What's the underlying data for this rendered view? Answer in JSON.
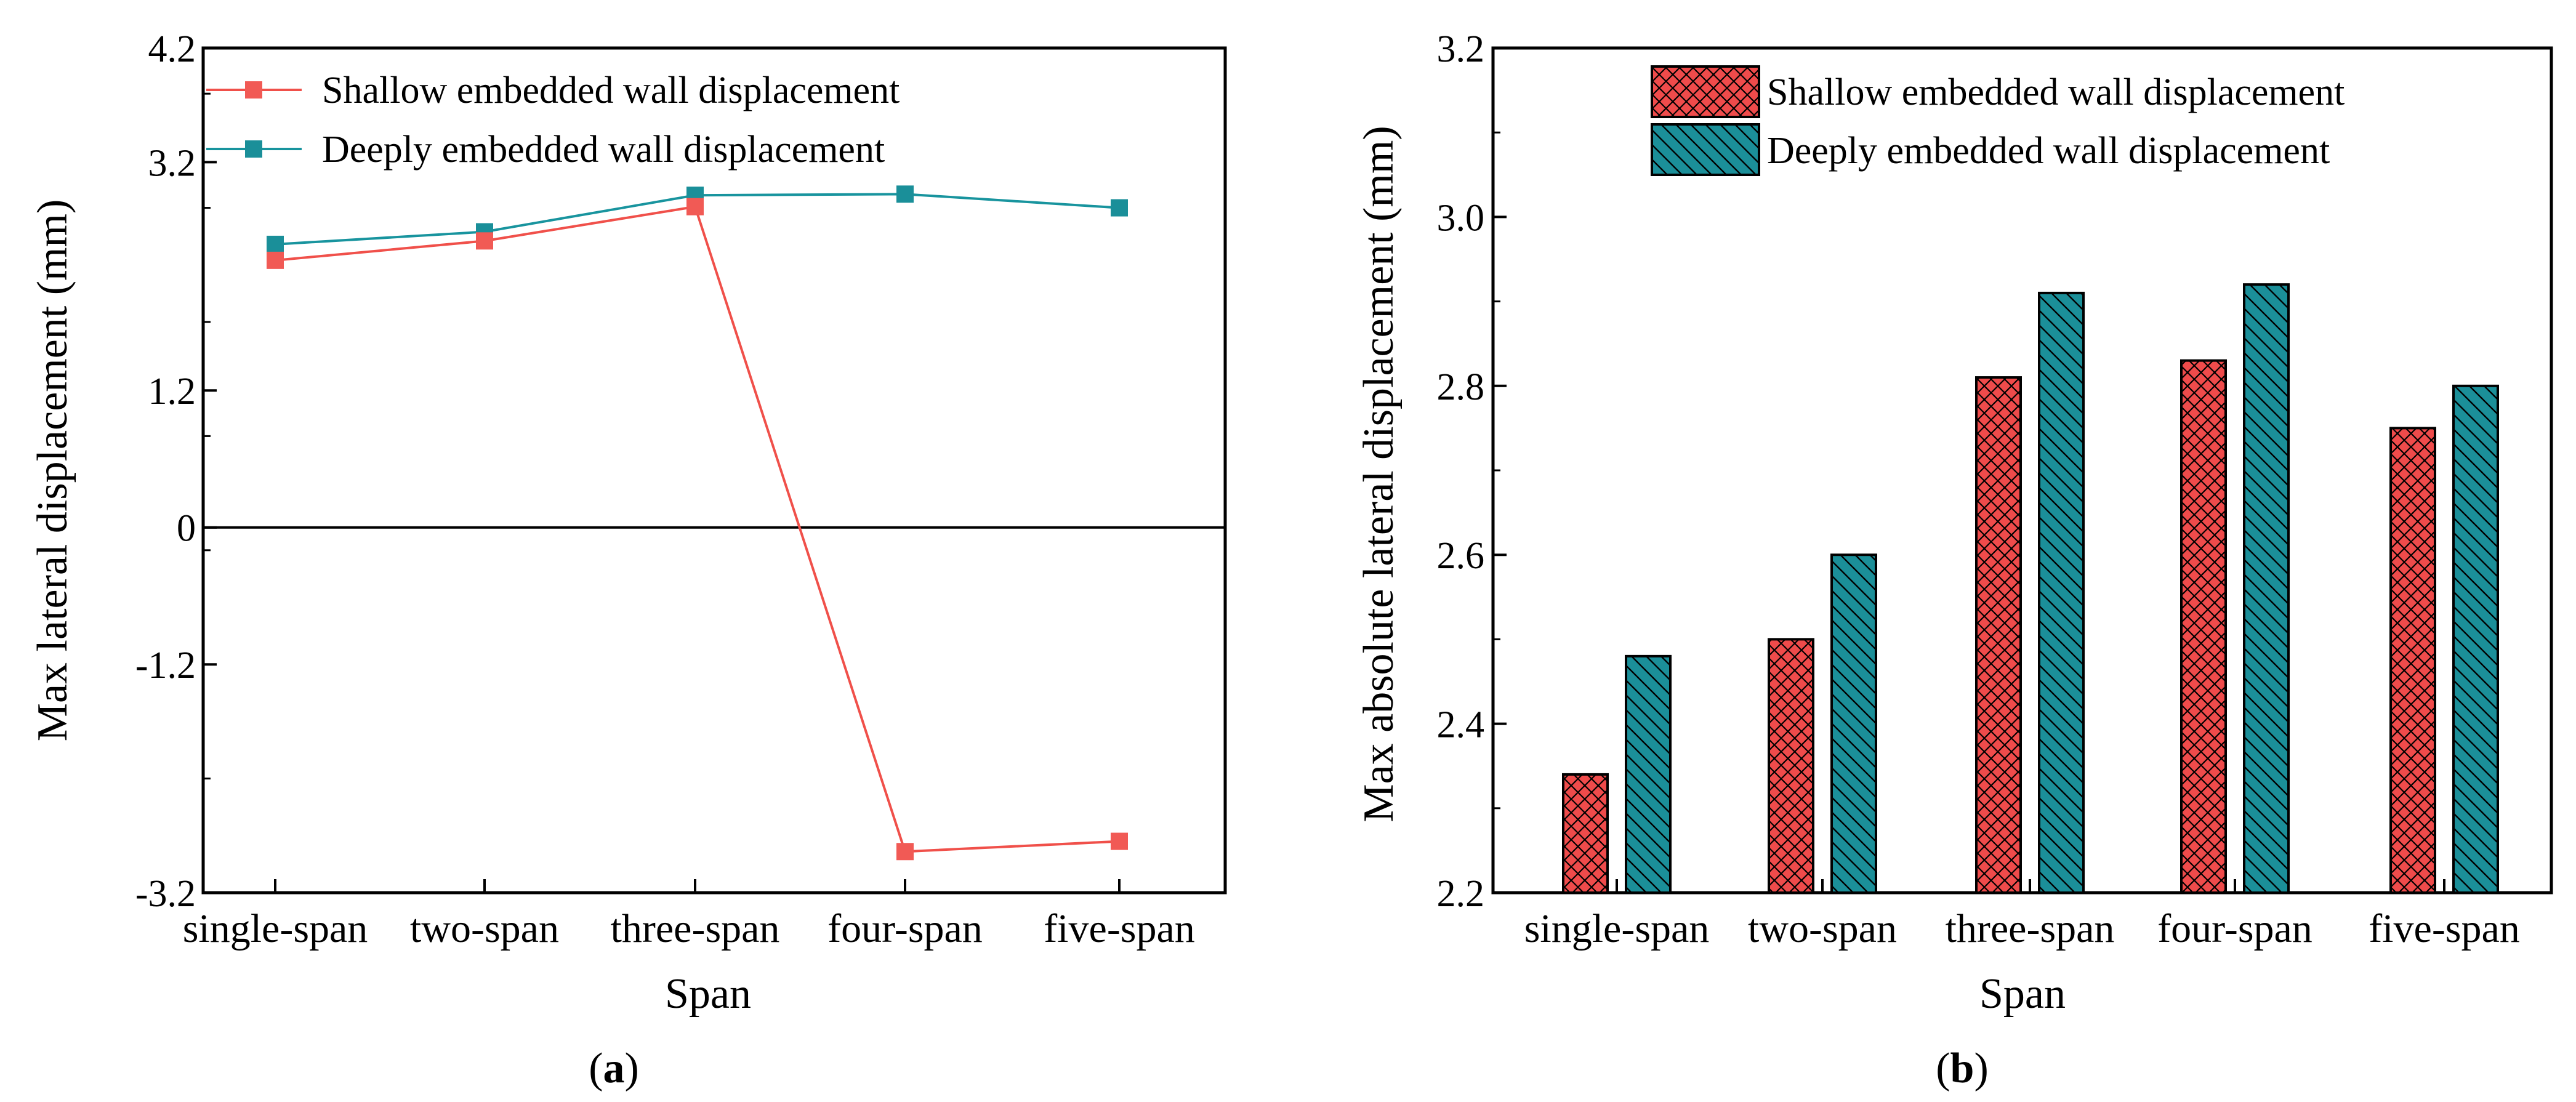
{
  "chart_data": [
    {
      "type": "line",
      "panel_label": "(a)",
      "panel_letter": "a",
      "categories": [
        "single-span",
        "two-span",
        "three-span",
        "four-span",
        "five-span"
      ],
      "series": [
        {
          "name": "Shallow embedded wall displacement",
          "values": [
            2.34,
            2.51,
            2.81,
            -2.84,
            -2.75
          ],
          "color": "#f0504a",
          "marker_color": "#f15a55"
        },
        {
          "name": "Deeply embedded wall displacement",
          "values": [
            2.48,
            2.59,
            2.91,
            2.92,
            2.8
          ],
          "color": "#18949e",
          "marker_color": "#1a8f99"
        }
      ],
      "xlabel": "Span",
      "ylabel": "Max lateral displacement (mm)",
      "ylim": [
        -3.2,
        4.2
      ],
      "yticks": [
        -3.2,
        -1.2,
        0,
        1.2,
        3.2,
        4.2
      ],
      "ytick_labels": [
        "-3.2",
        "-1.2",
        "0",
        "1.2",
        "3.2",
        "4.2"
      ],
      "zero_line": true,
      "legend_position": "top-left",
      "grid": false
    },
    {
      "type": "bar",
      "panel_label": "(b)",
      "panel_letter": "b",
      "categories": [
        "single-span",
        "two-span",
        "three-span",
        "four-span",
        "five-span"
      ],
      "series": [
        {
          "name": "Shallow embedded wall displacement",
          "values": [
            2.34,
            2.5,
            2.81,
            2.83,
            2.75
          ],
          "color": "#ef4b4b",
          "hatch": "crosshatch"
        },
        {
          "name": "Deeply embedded wall displacement",
          "values": [
            2.48,
            2.6,
            2.91,
            2.92,
            2.8
          ],
          "color": "#1b8f99",
          "hatch": "diagonal"
        }
      ],
      "xlabel": "Span",
      "ylabel": "Max absolute lateral displacement (mm)",
      "ylim": [
        2.2,
        3.2
      ],
      "yticks": [
        2.2,
        2.4,
        2.6,
        2.8,
        3.0,
        3.2
      ],
      "ytick_labels": [
        "2.2",
        "2.4",
        "2.6",
        "2.8",
        "3.0",
        "3.2"
      ],
      "legend_position": "top-left",
      "grid": false
    }
  ]
}
